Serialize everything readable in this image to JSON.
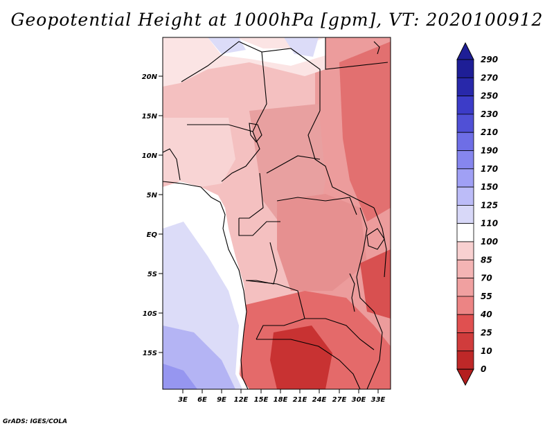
{
  "title": "Geopotential Height at 1000hPa [gpm], VT: 2020100912",
  "credit": "GrADS: IGES/COLA",
  "map": {
    "lat_labels": [
      "20N",
      "15N",
      "10N",
      "5N",
      "EQ",
      "5S",
      "10S",
      "15S"
    ],
    "lon_labels": [
      "3E",
      "6E",
      "9E",
      "12E",
      "15E",
      "18E",
      "21E",
      "24E",
      "27E",
      "30E",
      "33E"
    ]
  },
  "colorbar": {
    "labels": [
      "290",
      "270",
      "250",
      "230",
      "210",
      "190",
      "170",
      "150",
      "125",
      "110",
      "100",
      "85",
      "70",
      "55",
      "40",
      "25",
      "10",
      "0"
    ],
    "colors": {
      "dark_blue": "#1e1e96",
      "blue": "#3c3cc8",
      "mid_blue": "#6e6ee6",
      "light_blue": "#a0a0f5",
      "pale_blue": "#d8d8f8",
      "white": "#ffffff",
      "pale_red": "#f8d0d0",
      "light_red": "#f0a0a0",
      "red": "#e05050",
      "dark_red": "#b41e1e"
    }
  }
}
